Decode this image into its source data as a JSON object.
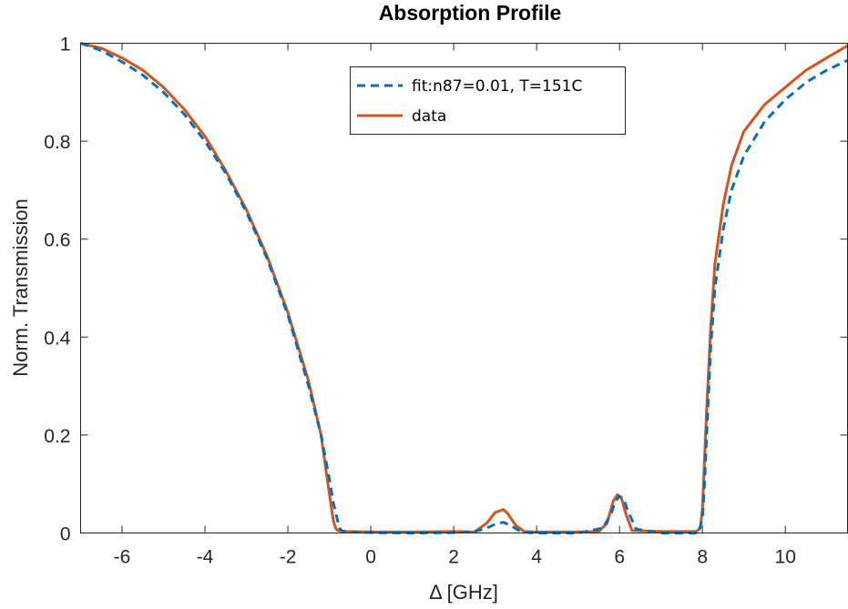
{
  "chart_data": {
    "type": "line",
    "title": "Absorption Profile",
    "xlabel": "Δ [GHz]",
    "ylabel": "Norm. Transmission",
    "xlim": [
      -7,
      11.5
    ],
    "ylim": [
      0,
      1
    ],
    "xticks": [
      -6,
      -4,
      -2,
      0,
      2,
      4,
      6,
      8,
      10
    ],
    "yticks": [
      0,
      0.2,
      0.4,
      0.6,
      0.8,
      1
    ],
    "xtick_labels": [
      "-6",
      "-4",
      "-2",
      "0",
      "2",
      "4",
      "6",
      "8",
      "10"
    ],
    "ytick_labels": [
      "0",
      "0.2",
      "0.4",
      "0.6",
      "0.8",
      "1"
    ],
    "grid": false,
    "legend": {
      "position": "top-center"
    },
    "series": [
      {
        "name": "fit:n87=0.01, T=151C",
        "color": "#0072BD",
        "style": "dashed",
        "x": [
          -7,
          -6.5,
          -6,
          -5.5,
          -5,
          -4.5,
          -4,
          -3.5,
          -3,
          -2.5,
          -2,
          -1.5,
          -1.2,
          -1.0,
          -0.9,
          -0.8,
          -0.75,
          -0.7,
          -0.5,
          0,
          1,
          2,
          2.5,
          2.8,
          3.0,
          3.2,
          3.4,
          3.6,
          3.8,
          4,
          5,
          5.6,
          5.8,
          5.9,
          6.0,
          6.1,
          6.2,
          6.4,
          7,
          7.5,
          7.8,
          7.9,
          8.0,
          8.05,
          8.1,
          8.2,
          8.3,
          8.5,
          8.7,
          9,
          9.5,
          10,
          10.5,
          11,
          11.5
        ],
        "y": [
          1.0,
          0.985,
          0.962,
          0.935,
          0.9,
          0.855,
          0.8,
          0.735,
          0.655,
          0.56,
          0.445,
          0.3,
          0.2,
          0.11,
          0.06,
          0.025,
          0.01,
          0.004,
          0.002,
          0.001,
          0.0,
          0.001,
          0.003,
          0.01,
          0.018,
          0.022,
          0.014,
          0.004,
          0.001,
          0.0,
          0.0,
          0.01,
          0.04,
          0.065,
          0.075,
          0.07,
          0.045,
          0.008,
          0.0,
          0.0,
          0.0,
          0.0,
          0.03,
          0.1,
          0.2,
          0.38,
          0.5,
          0.62,
          0.7,
          0.77,
          0.84,
          0.885,
          0.92,
          0.945,
          0.965
        ]
      },
      {
        "name": "data",
        "color": "#D95319",
        "style": "solid",
        "x": [
          -7,
          -6.5,
          -6,
          -5.5,
          -5,
          -4.5,
          -4,
          -3.5,
          -3,
          -2.5,
          -2,
          -1.5,
          -1.2,
          -1.05,
          -0.95,
          -0.9,
          -0.85,
          -0.8,
          -0.6,
          0,
          1,
          2,
          2.5,
          2.8,
          3.0,
          3.2,
          3.3,
          3.5,
          3.7,
          4,
          5,
          5.5,
          5.7,
          5.85,
          5.95,
          6.05,
          6.15,
          6.3,
          7,
          7.5,
          7.85,
          7.95,
          8.0,
          8.1,
          8.2,
          8.3,
          8.5,
          8.7,
          9,
          9.5,
          10,
          10.5,
          11,
          11.5
        ],
        "y": [
          1.0,
          0.99,
          0.97,
          0.945,
          0.91,
          0.865,
          0.81,
          0.74,
          0.66,
          0.565,
          0.45,
          0.31,
          0.2,
          0.11,
          0.05,
          0.025,
          0.01,
          0.005,
          0.003,
          0.002,
          0.002,
          0.003,
          0.002,
          0.02,
          0.042,
          0.048,
          0.04,
          0.015,
          0.003,
          0.002,
          0.002,
          0.003,
          0.02,
          0.065,
          0.078,
          0.07,
          0.04,
          0.005,
          0.003,
          0.003,
          0.003,
          0.01,
          0.05,
          0.25,
          0.42,
          0.55,
          0.67,
          0.75,
          0.82,
          0.875,
          0.91,
          0.945,
          0.97,
          0.995
        ]
      }
    ]
  }
}
